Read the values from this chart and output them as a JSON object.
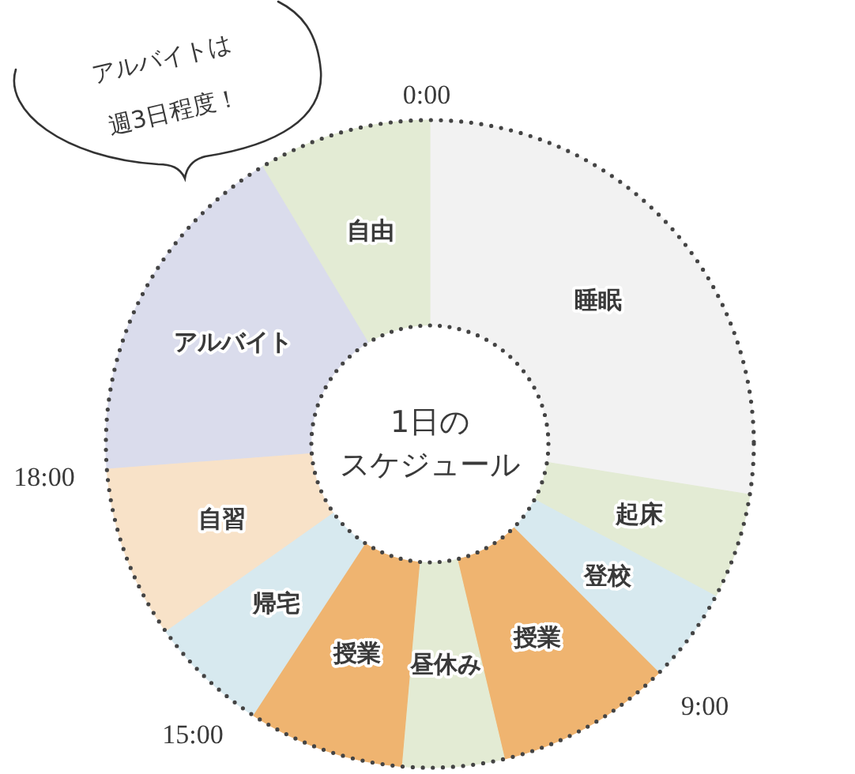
{
  "chart_data": {
    "type": "donut",
    "title": "1日のスケジュール",
    "categories": [
      "睡眠",
      "起床",
      "登校",
      "授業",
      "昼休み",
      "授業",
      "帰宅",
      "自習",
      "アルバイト",
      "自由"
    ],
    "values": [
      27.5,
      5.3,
      4.7,
      8.8,
      5.1,
      7.8,
      6.0,
      8.6,
      17.6,
      8.6
    ],
    "colors": [
      "#f2f2f2",
      "#e3ebd4",
      "#d7e9ef",
      "#efb470",
      "#e3ebd4",
      "#efb470",
      "#d7e9ef",
      "#f8e2c8",
      "#dadcec",
      "#e3ebd4"
    ],
    "annotations": [
      "アルバイトは週3日程度！",
      "0:00",
      "9:00",
      "15:00",
      "18:00"
    ]
  }
}
